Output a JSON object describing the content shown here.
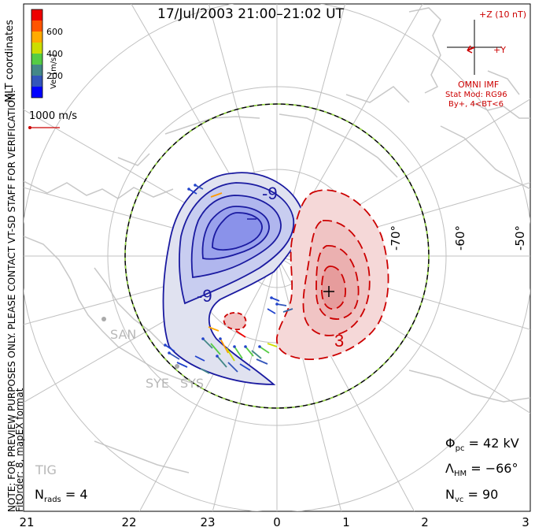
{
  "title": "17/Jul/2003 21:00–21:02 UT",
  "side_note_1": "NOTE: FOR PREVIEW PURPOSES ONLY. PLEASE CONTACT VT-SD STAFF FOR VERIFICATION.",
  "side_note_2": "FitOrder: 8, mapEX format",
  "coordinates": "MLT coordinates",
  "velocity_scale": {
    "label": "Vel [m/s]",
    "ticks": [
      "600",
      "400",
      "200"
    ],
    "colors": [
      "#0000ff",
      "#3355bb",
      "#448888",
      "#55cc44",
      "#ccdd00",
      "#ffaa00",
      "#ff5500",
      "#ee0000"
    ]
  },
  "vector_scale": "1000 m/s",
  "imf": {
    "z_label": "+Z (10 nT)",
    "y_label": "+Y",
    "source": "OMNI IMF",
    "model": "Stat Mod: RG96",
    "condition": "By+, 4<BT<6"
  },
  "stats": {
    "phi_pc": "= 42 kV",
    "lambda_hm": "= −66°",
    "n_vc": "= 90",
    "n_rads": "= 4"
  },
  "stations": [
    "SAN",
    "SYE",
    "SYS",
    "TIG"
  ],
  "contours": {
    "neg_label": "-9",
    "pos_label": "3",
    "min_marker": "−",
    "max_marker": "+"
  },
  "chart_data": {
    "type": "polar convection map",
    "x_ticks": [
      "21",
      "22",
      "23",
      "0",
      "1",
      "2",
      "3"
    ],
    "lat_labels": [
      "-70°",
      "-60°",
      "-50°"
    ],
    "potential_kV": 42,
    "heppner_maynard_boundary_deg": -66,
    "n_vectors": 90,
    "n_radars": 4
  }
}
